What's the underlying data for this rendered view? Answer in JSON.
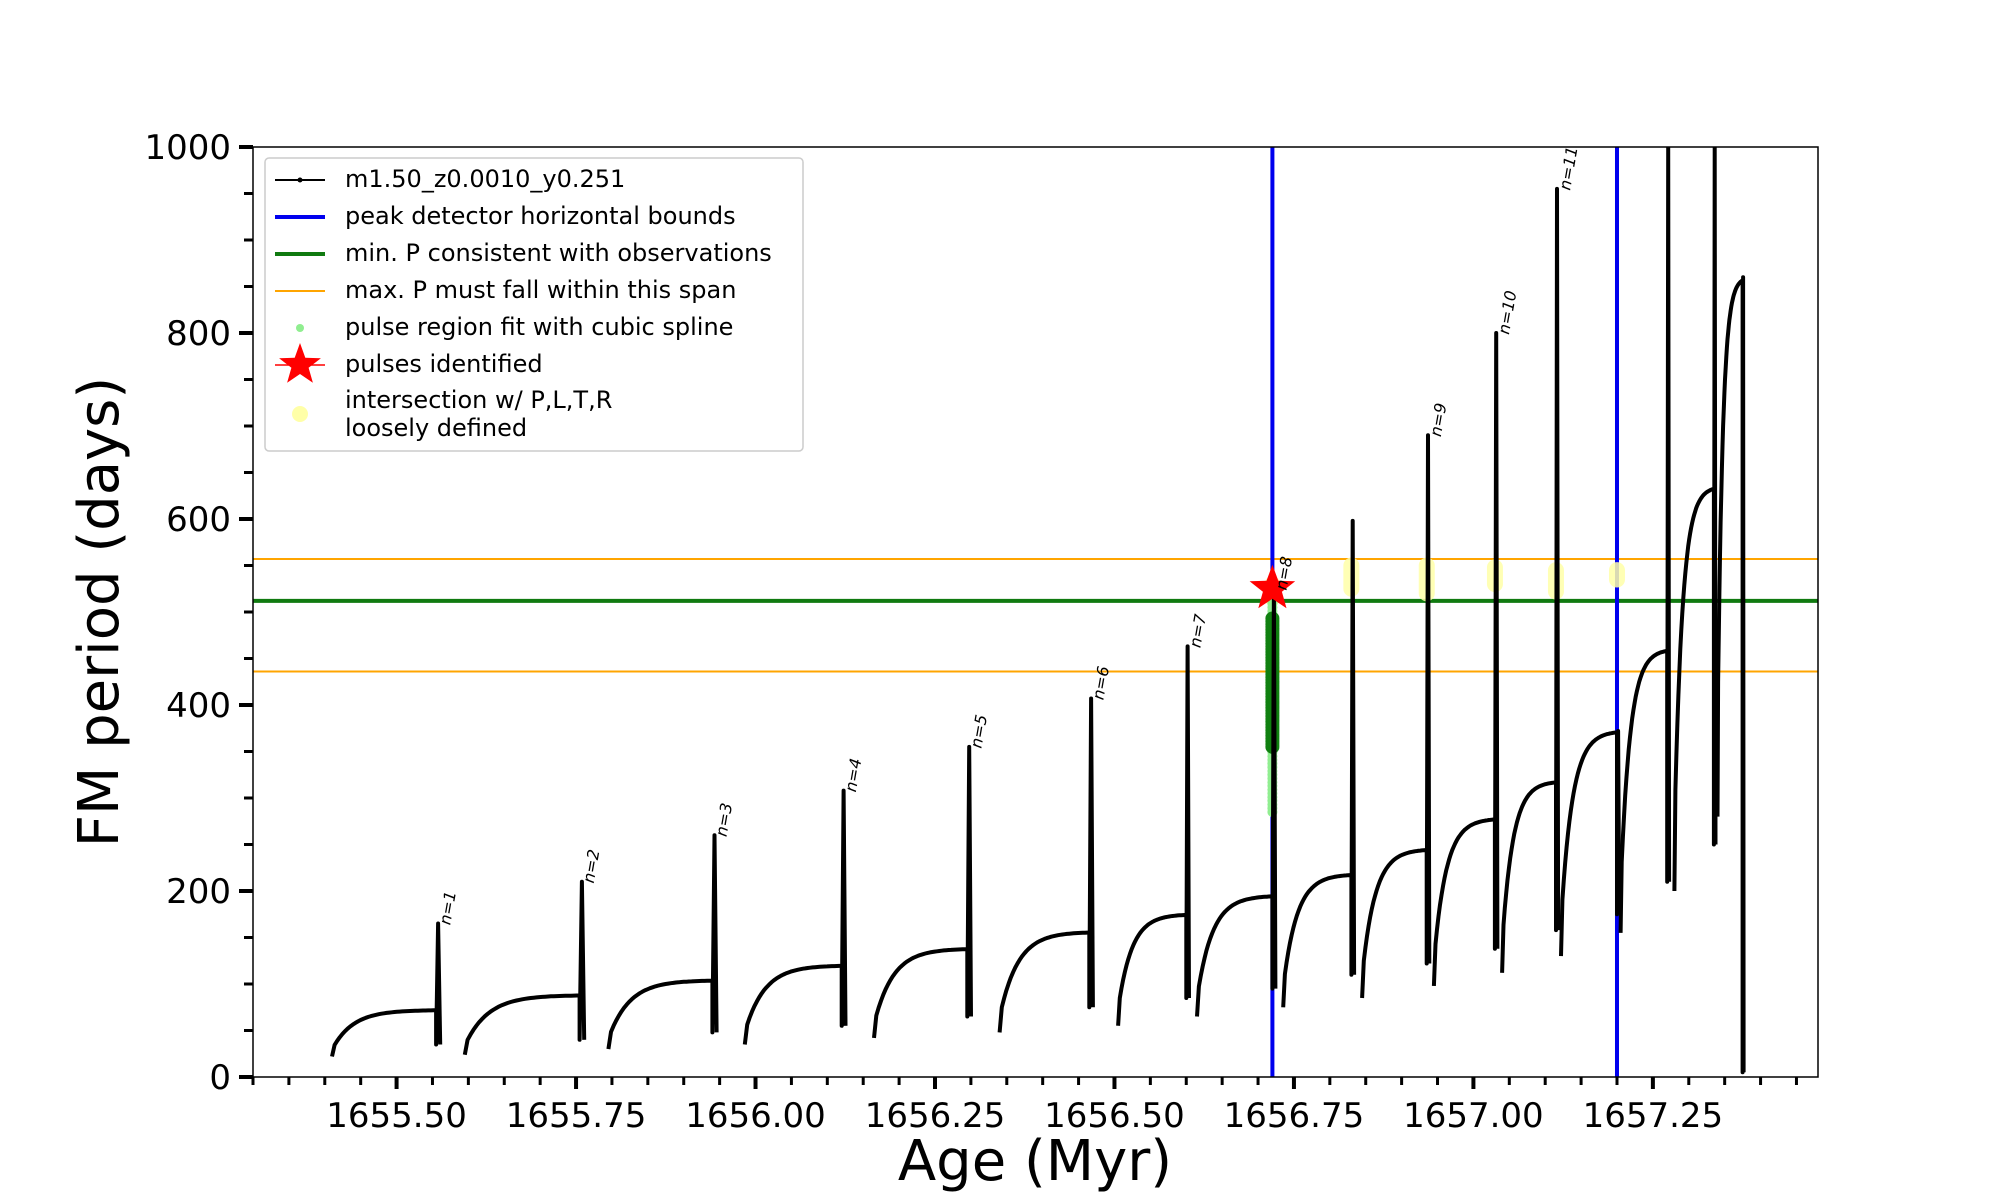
{
  "chart_data": {
    "type": "line",
    "xlabel": "Age (Myr)",
    "ylabel": "FM period (days)",
    "xlim": [
      1655.3,
      1657.48
    ],
    "ylim": [
      0,
      1000
    ],
    "xticks": [
      "1655.50",
      "1655.75",
      "1656.00",
      "1656.25",
      "1656.50",
      "1656.75",
      "1657.00",
      "1657.25"
    ],
    "yticks": [
      "0",
      "200",
      "400",
      "600",
      "800",
      "1000"
    ],
    "legend_position": "top-left",
    "legend": [
      {
        "label": "m1.50_z0.0010_y0.251",
        "kind": "line-dots",
        "color": "#000000"
      },
      {
        "label": "peak detector horizontal bounds",
        "kind": "thick-line",
        "color": "#0000ee"
      },
      {
        "label": "min. P consistent with observations",
        "kind": "thick-line",
        "color": "#107a10"
      },
      {
        "label": "max. P must fall within this span",
        "kind": "thin-line",
        "color": "#ffa500"
      },
      {
        "label": "pulse region fit with cubic spline",
        "kind": "dot",
        "color": "#90ee90"
      },
      {
        "label": "pulses identified",
        "kind": "star",
        "color": "#ff0000"
      },
      {
        "label": "intersection w/ P,L,T,R",
        "label2": "loosely defined",
        "kind": "blob",
        "color": "#ffffa8"
      }
    ],
    "series": [
      {
        "name": "m1.50_z0.0010_y0.251",
        "color": "#000000",
        "cycles": [
          {
            "x0": 1655.41,
            "y0": 22,
            "x1": 1655.555,
            "y1": 72,
            "ymin": 35,
            "peak": 165,
            "rmin": 24
          },
          {
            "x0": 1655.595,
            "y0": 24,
            "x1": 1655.755,
            "y1": 88,
            "ymin": 40,
            "peak": 210,
            "rmin": 30
          },
          {
            "x0": 1655.795,
            "y0": 30,
            "x1": 1655.94,
            "y1": 104,
            "ymin": 48,
            "peak": 260,
            "rmin": 35
          },
          {
            "x0": 1655.985,
            "y0": 35,
            "x1": 1656.12,
            "y1": 120,
            "ymin": 55,
            "peak": 308,
            "rmin": 42
          },
          {
            "x0": 1656.165,
            "y0": 42,
            "x1": 1656.295,
            "y1": 138,
            "ymin": 65,
            "peak": 355,
            "rmin": 48
          },
          {
            "x0": 1656.34,
            "y0": 48,
            "x1": 1656.465,
            "y1": 156,
            "ymin": 75,
            "peak": 407,
            "rmin": 55
          },
          {
            "x0": 1656.505,
            "y0": 55,
            "x1": 1656.6,
            "y1": 175,
            "ymin": 85,
            "peak": 463,
            "rmin": 65
          },
          {
            "x0": 1656.615,
            "y0": 65,
            "x1": 1656.72,
            "y1": 195,
            "ymin": 95,
            "peak": 525,
            "rmin": 75
          },
          {
            "x0": 1656.735,
            "y0": 75,
            "x1": 1656.83,
            "y1": 218,
            "ymin": 110,
            "peak": 598,
            "rmin": 85
          },
          {
            "x0": 1656.845,
            "y0": 85,
            "x1": 1656.935,
            "y1": 245,
            "ymin": 122,
            "peak": 690,
            "rmin": 98
          },
          {
            "x0": 1656.945,
            "y0": 98,
            "x1": 1657.03,
            "y1": 278,
            "ymin": 138,
            "peak": 800,
            "rmin": 112
          },
          {
            "x0": 1657.04,
            "y0": 112,
            "x1": 1657.115,
            "y1": 318,
            "ymin": 158,
            "peak": 955,
            "rmin": 130
          },
          {
            "x0": 1657.122,
            "y0": 130,
            "x1": 1657.2,
            "y1": 372,
            "ymin": 175,
            "peak": 372,
            "rmin": 155
          },
          {
            "x0": 1657.205,
            "y0": 155,
            "x1": 1657.27,
            "y1": 460,
            "ymin": 210,
            "peak": 1000,
            "rmin": 200
          },
          {
            "x0": 1657.28,
            "y0": 200,
            "x1": 1657.335,
            "y1": 635,
            "ymin": 250,
            "peak": 1000,
            "rmin": 280
          },
          {
            "x0": 1657.34,
            "y0": 280,
            "x1": 1657.375,
            "y1": 860,
            "ymin": 5,
            "peak": 860,
            "rmin": 0
          }
        ]
      }
    ],
    "pulse_labels": [
      {
        "text": "n=1",
        "x": 1655.555,
        "y": 165
      },
      {
        "text": "n=2",
        "x": 1655.755,
        "y": 210
      },
      {
        "text": "n=3",
        "x": 1655.94,
        "y": 260
      },
      {
        "text": "n=4",
        "x": 1656.12,
        "y": 308
      },
      {
        "text": "n=5",
        "x": 1656.295,
        "y": 355
      },
      {
        "text": "n=6",
        "x": 1656.465,
        "y": 407
      },
      {
        "text": "n=7",
        "x": 1656.6,
        "y": 463
      },
      {
        "text": "n=8",
        "x": 1656.72,
        "y": 525
      },
      {
        "text": "n=9",
        "x": 1656.935,
        "y": 690
      },
      {
        "text": "n=10",
        "x": 1657.03,
        "y": 800
      },
      {
        "text": "n=11",
        "x": 1657.115,
        "y": 955
      }
    ],
    "vertical_lines": {
      "color": "#0000ee",
      "x": [
        1656.72,
        1657.2
      ]
    },
    "min_period_line": {
      "color": "#107a10",
      "y": 512
    },
    "max_period_span": {
      "color": "#ffa500",
      "y": [
        436,
        557
      ]
    },
    "spline_fit": {
      "x": 1656.72,
      "y_light": [
        285,
        520
      ],
      "y_dark": [
        355,
        495
      ]
    },
    "pulse_identified": {
      "x": 1656.72,
      "y": 525
    },
    "intersections": [
      {
        "x": 1656.72,
        "y": [
          515,
          530
        ]
      },
      {
        "x": 1656.83,
        "y": [
          525,
          550
        ]
      },
      {
        "x": 1656.935,
        "y": [
          520,
          550
        ]
      },
      {
        "x": 1657.03,
        "y": [
          530,
          548
        ]
      },
      {
        "x": 1657.115,
        "y": [
          522,
          545
        ]
      },
      {
        "x": 1657.2,
        "y": [
          535,
          545
        ]
      }
    ]
  }
}
